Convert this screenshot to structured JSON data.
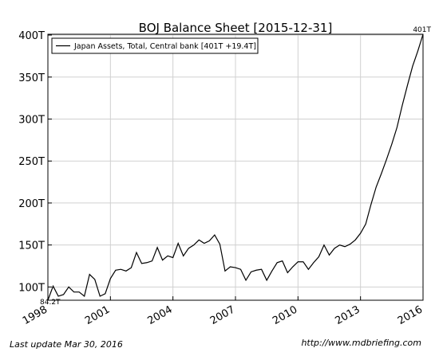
{
  "chart_data": {
    "type": "line",
    "title": "BOJ Balance Sheet  [2015-12-31]",
    "series": [
      {
        "name": "Japan Assets, Total, Central bank [401T +19.4T]",
        "color": "#000000",
        "x": [
          1998.0,
          1998.25,
          1998.5,
          1998.75,
          1999.0,
          1999.25,
          1999.5,
          1999.75,
          2000.0,
          2000.25,
          2000.5,
          2000.75,
          2001.0,
          2001.25,
          2001.5,
          2001.75,
          2002.0,
          2002.25,
          2002.5,
          2002.75,
          2003.0,
          2003.25,
          2003.5,
          2003.75,
          2004.0,
          2004.25,
          2004.5,
          2004.75,
          2005.0,
          2005.25,
          2005.5,
          2005.75,
          2006.0,
          2006.25,
          2006.5,
          2006.75,
          2007.0,
          2007.25,
          2007.5,
          2007.75,
          2008.0,
          2008.25,
          2008.5,
          2008.75,
          2009.0,
          2009.25,
          2009.5,
          2009.75,
          2010.0,
          2010.25,
          2010.5,
          2010.75,
          2011.0,
          2011.25,
          2011.5,
          2011.75,
          2012.0,
          2012.25,
          2012.5,
          2012.75,
          2013.0,
          2013.25,
          2013.5,
          2013.75,
          2014.0,
          2014.25,
          2014.5,
          2014.75,
          2015.0,
          2015.25,
          2015.5,
          2015.75,
          2016.0
        ],
        "values": [
          84.2,
          101,
          89,
          91,
          100,
          94,
          94,
          89,
          115,
          109,
          89,
          92,
          110,
          120,
          121,
          119,
          123,
          141,
          128,
          129,
          131,
          147,
          132,
          137,
          135,
          152,
          137,
          146,
          150,
          156,
          152,
          155,
          162,
          151,
          119,
          124,
          123,
          121,
          108,
          118,
          120,
          121,
          108,
          119,
          129,
          131,
          117,
          124,
          130,
          130,
          121,
          129,
          136,
          150,
          138,
          146,
          150,
          148,
          151,
          156,
          164,
          175,
          198,
          219,
          235,
          252,
          270,
          290,
          316,
          340,
          363,
          381,
          401
        ]
      }
    ],
    "xlim": [
      1998,
      2016
    ],
    "xticks": [
      1998,
      2001,
      2004,
      2007,
      2010,
      2013,
      2016
    ],
    "ylim": [
      84.2,
      401
    ],
    "yticks": [
      {
        "value": 100,
        "label": "100T"
      },
      {
        "value": 150,
        "label": "150T"
      },
      {
        "value": 200,
        "label": "200T"
      },
      {
        "value": 250,
        "label": "250T"
      },
      {
        "value": 300,
        "label": "300T"
      },
      {
        "value": 350,
        "label": "350T"
      },
      {
        "value": 400,
        "label": "400T"
      }
    ],
    "grid": true,
    "legend": "upper left",
    "annotations": [
      "84.2T",
      "401T"
    ],
    "footer_left": "Last update Mar 30, 2016",
    "footer_right": "http://www.mdbriefing.com"
  }
}
